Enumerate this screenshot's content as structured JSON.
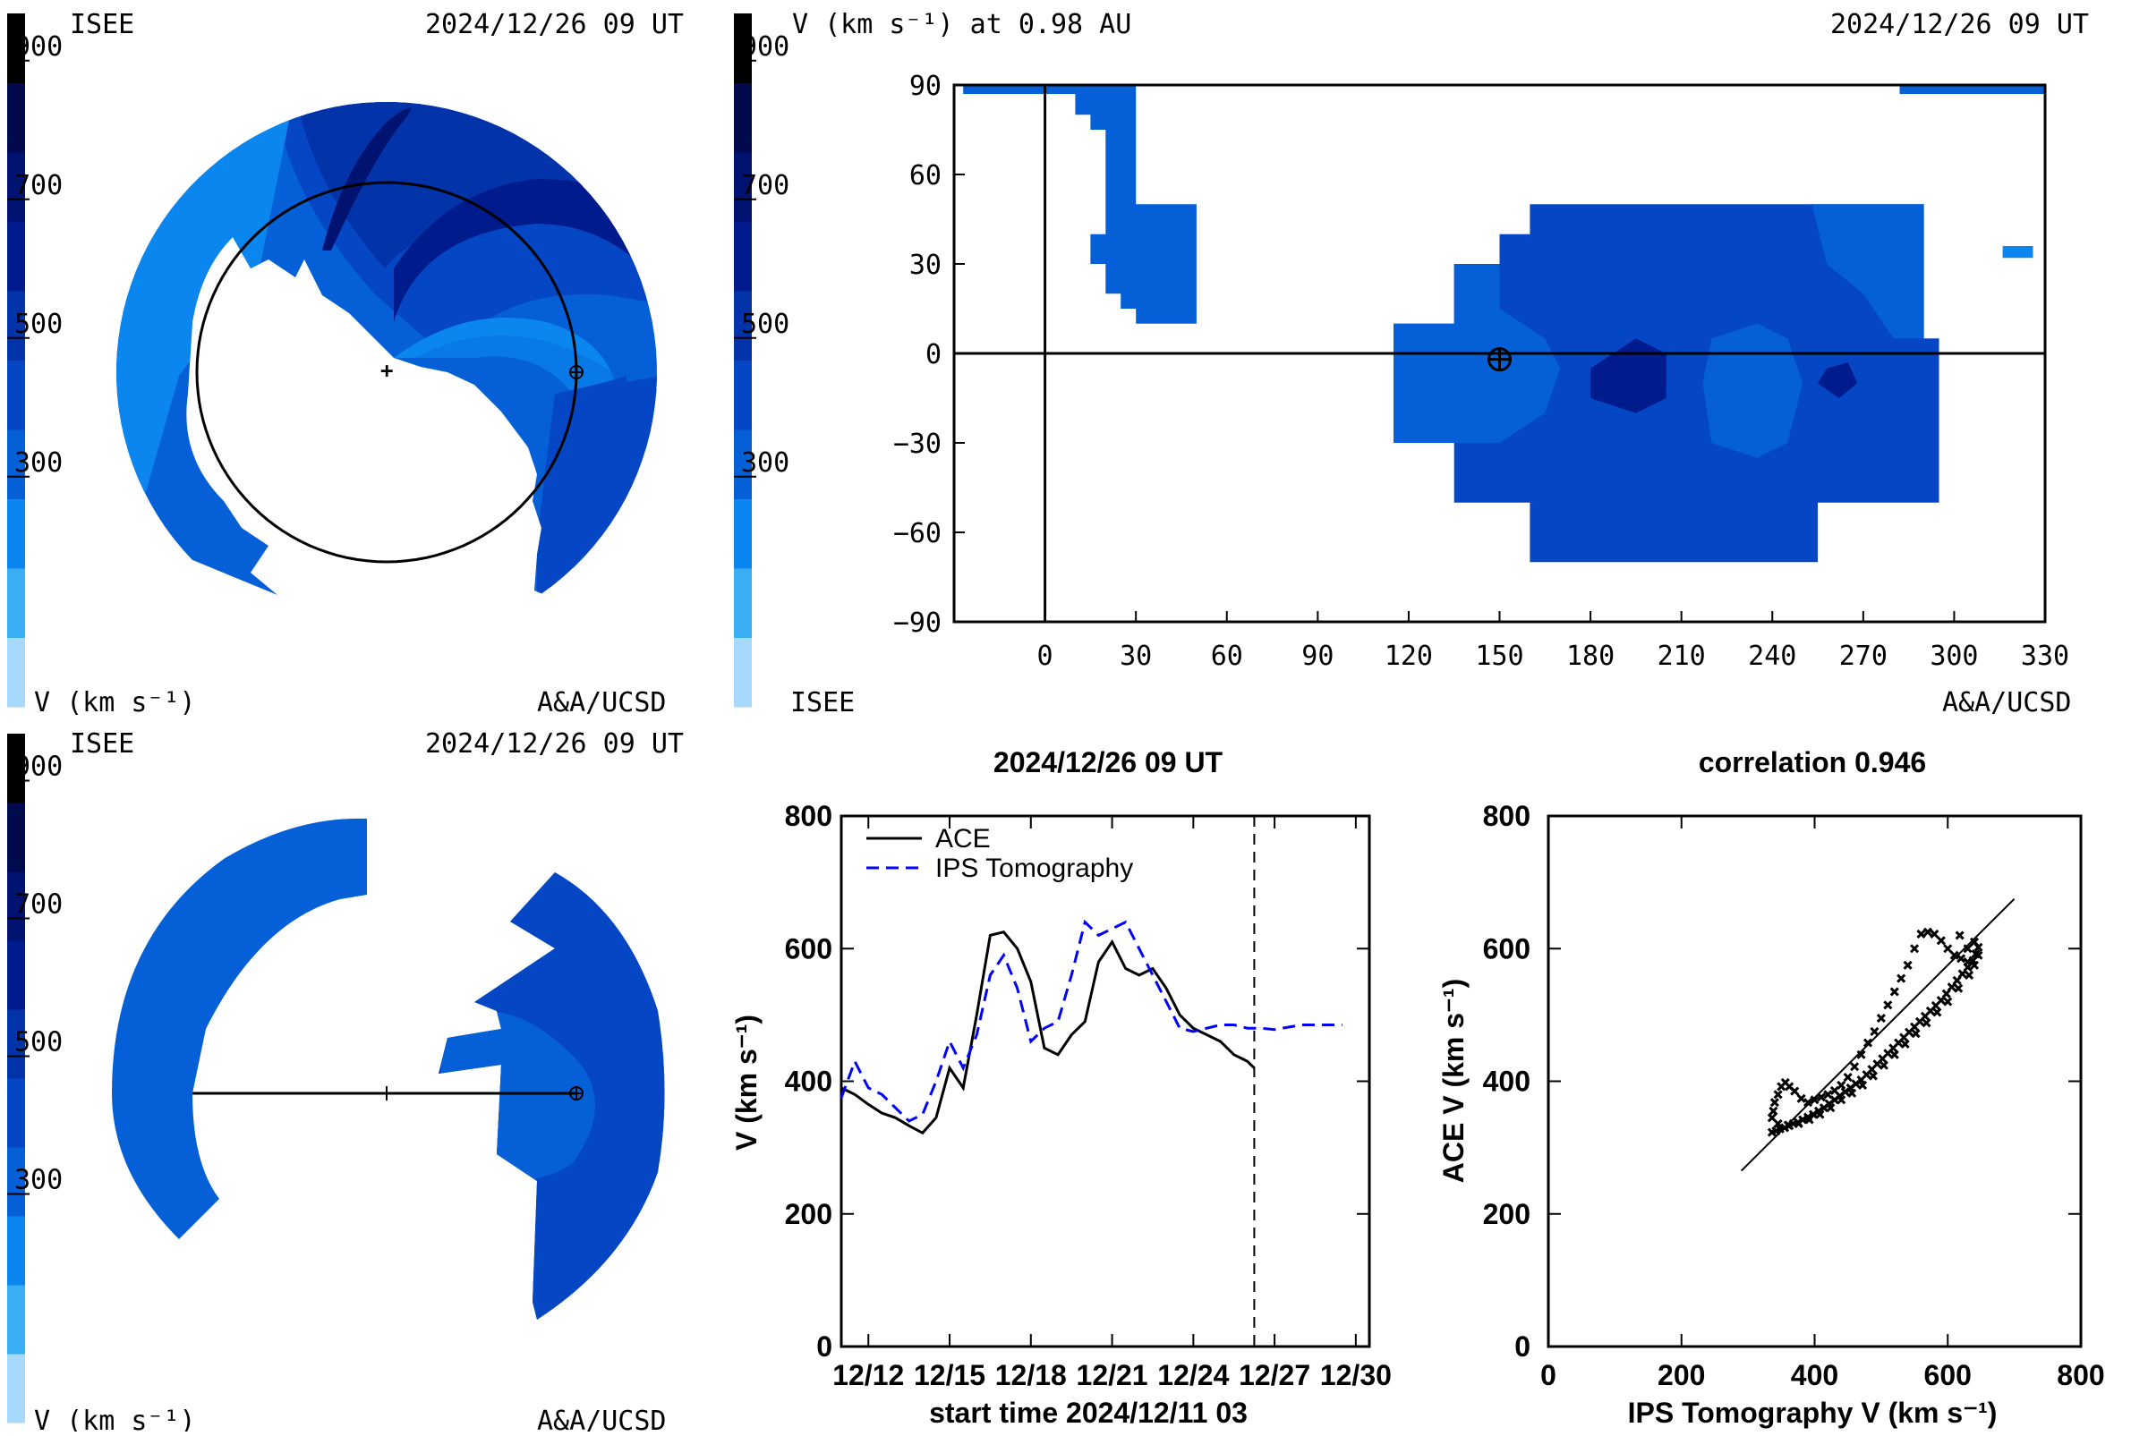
{
  "colorbar": {
    "ticks": [
      "900",
      "700",
      "500",
      "300"
    ],
    "colors": [
      "#a6d9fb",
      "#3aaef5",
      "#0a86ee",
      "#0560d8",
      "#0446c4",
      "#0333a8",
      "#001b8c",
      "#001371",
      "#000a4d",
      "#000000"
    ]
  },
  "panels": {
    "top_left": {
      "org": "ISEE",
      "datetime": "2024/12/26 09 UT",
      "units": "V (km s⁻¹)",
      "credit": "A&A/UCSD"
    },
    "top_right": {
      "title": "V (km s⁻¹) at 0.98 AU",
      "datetime": "2024/12/26 09 UT",
      "org": "ISEE",
      "credit": "A&A/UCSD"
    },
    "bottom_left": {
      "org": "ISEE",
      "datetime": "2024/12/26 09 UT",
      "units": "V (km s⁻¹)",
      "credit": "A&A/UCSD"
    }
  },
  "colors": {
    "vlow": "#0a86ee",
    "vmed": "#0560d8",
    "vhigh": "#0446c4",
    "vhigher": "#0333a8",
    "vtop": "#001b8c",
    "tomo": "#0000ff",
    "ace": "#000000"
  },
  "chart_data": [
    {
      "type": "heatmap",
      "title": "V (km s⁻¹) at 0.98 AU",
      "x_ticks": [
        "0",
        "30",
        "60",
        "90",
        "120",
        "150",
        "180",
        "210",
        "240",
        "270",
        "300",
        "330"
      ],
      "y_ticks": [
        "90",
        "60",
        "30",
        "0",
        "−30",
        "−60",
        "−90"
      ],
      "xlim": [
        -30,
        330
      ],
      "ylim": [
        -90,
        90
      ],
      "earth_marker": [
        150,
        -2
      ],
      "colorbar_range": [
        200,
        1000
      ]
    },
    {
      "type": "line",
      "title": "2024/12/26 09 UT",
      "xlabel": "start time 2024/12/11 03",
      "ylabel": "V (km s⁻¹)",
      "x_ticks": [
        "12/12",
        "12/15",
        "12/18",
        "12/21",
        "12/24",
        "12/27",
        "12/30"
      ],
      "y_ticks": [
        "0",
        "200",
        "400",
        "600",
        "800"
      ],
      "xlim": [
        0,
        19.5
      ],
      "ylim": [
        0,
        800
      ],
      "current_time_day": 15.25,
      "series": [
        {
          "name": "ACE",
          "x": [
            0,
            0.5,
            1,
            1.5,
            2,
            2.5,
            3,
            3.5,
            4,
            4.5,
            5,
            5.5,
            6,
            6.5,
            7,
            7.5,
            8,
            8.5,
            9,
            9.5,
            10,
            10.5,
            11,
            11.5,
            12,
            12.5,
            13,
            13.5,
            14,
            14.5,
            15,
            15.25
          ],
          "y": [
            390,
            380,
            365,
            352,
            345,
            333,
            322,
            345,
            420,
            390,
            500,
            620,
            625,
            600,
            550,
            450,
            440,
            470,
            490,
            580,
            610,
            570,
            560,
            570,
            540,
            500,
            480,
            470,
            460,
            440,
            430,
            420
          ]
        },
        {
          "name": "IPS Tomography",
          "x": [
            0,
            0.5,
            1,
            1.5,
            2,
            2.5,
            3,
            3.5,
            4,
            4.5,
            5,
            5.5,
            6,
            6.5,
            7,
            7.5,
            8,
            8.5,
            9,
            9.5,
            10,
            10.5,
            11,
            11.5,
            12,
            12.5,
            13,
            13.5,
            14,
            14.5,
            15,
            15.5,
            16,
            17,
            18,
            18.5
          ],
          "y": [
            375,
            430,
            390,
            380,
            360,
            340,
            350,
            400,
            460,
            420,
            470,
            560,
            590,
            540,
            460,
            480,
            490,
            560,
            640,
            620,
            630,
            640,
            600,
            560,
            520,
            480,
            475,
            480,
            485,
            485,
            480,
            480,
            478,
            485,
            485,
            485
          ]
        }
      ]
    },
    {
      "type": "scatter",
      "title": "correlation 0.946",
      "xlabel": "IPS Tomography V (km s⁻¹)",
      "ylabel": "ACE V (km s⁻¹)",
      "x_ticks": [
        "0",
        "200",
        "400",
        "600",
        "800"
      ],
      "y_ticks": [
        "0",
        "200",
        "400",
        "600",
        "800"
      ],
      "xlim": [
        0,
        800
      ],
      "ylim": [
        0,
        800
      ],
      "fit_line": [
        [
          290,
          265
        ],
        [
          700,
          675
        ]
      ],
      "points": [
        [
          336,
          323
        ],
        [
          342,
          325
        ],
        [
          348,
          328
        ],
        [
          355,
          330
        ],
        [
          362,
          333
        ],
        [
          368,
          336
        ],
        [
          375,
          338
        ],
        [
          382,
          342
        ],
        [
          390,
          346
        ],
        [
          398,
          350
        ],
        [
          406,
          355
        ],
        [
          414,
          360
        ],
        [
          422,
          366
        ],
        [
          430,
          372
        ],
        [
          438,
          378
        ],
        [
          446,
          384
        ],
        [
          454,
          390
        ],
        [
          462,
          396
        ],
        [
          470,
          402
        ],
        [
          478,
          410
        ],
        [
          486,
          418
        ],
        [
          494,
          426
        ],
        [
          502,
          434
        ],
        [
          510,
          442
        ],
        [
          518,
          450
        ],
        [
          526,
          458
        ],
        [
          534,
          466
        ],
        [
          542,
          474
        ],
        [
          550,
          482
        ],
        [
          558,
          490
        ],
        [
          566,
          498
        ],
        [
          574,
          506
        ],
        [
          582,
          514
        ],
        [
          590,
          522
        ],
        [
          598,
          532
        ],
        [
          606,
          542
        ],
        [
          614,
          552
        ],
        [
          622,
          562
        ],
        [
          630,
          572
        ],
        [
          638,
          582
        ],
        [
          642,
          592
        ],
        [
          646,
          602
        ],
        [
          630,
          580
        ],
        [
          620,
          585
        ],
        [
          610,
          590
        ],
        [
          600,
          600
        ],
        [
          590,
          612
        ],
        [
          580,
          622
        ],
        [
          570,
          625
        ],
        [
          560,
          622
        ],
        [
          550,
          600
        ],
        [
          540,
          575
        ],
        [
          530,
          555
        ],
        [
          520,
          535
        ],
        [
          510,
          515
        ],
        [
          500,
          495
        ],
        [
          490,
          475
        ],
        [
          480,
          458
        ],
        [
          470,
          440
        ],
        [
          460,
          422
        ],
        [
          450,
          406
        ],
        [
          440,
          394
        ],
        [
          430,
          386
        ],
        [
          420,
          380
        ],
        [
          410,
          376
        ],
        [
          400,
          372
        ],
        [
          390,
          368
        ],
        [
          380,
          374
        ],
        [
          370,
          385
        ],
        [
          362,
          392
        ],
        [
          356,
          398
        ],
        [
          350,
          392
        ],
        [
          345,
          380
        ],
        [
          340,
          368
        ],
        [
          338,
          355
        ],
        [
          336,
          345
        ],
        [
          345,
          336
        ],
        [
          360,
          334
        ],
        [
          376,
          336
        ],
        [
          392,
          342
        ],
        [
          408,
          350
        ],
        [
          424,
          360
        ],
        [
          440,
          372
        ],
        [
          456,
          382
        ],
        [
          472,
          394
        ],
        [
          488,
          408
        ],
        [
          504,
          424
        ],
        [
          520,
          440
        ],
        [
          536,
          456
        ],
        [
          552,
          472
        ],
        [
          568,
          488
        ],
        [
          584,
          504
        ],
        [
          600,
          520
        ],
        [
          616,
          540
        ],
        [
          632,
          560
        ],
        [
          640,
          575
        ],
        [
          646,
          590
        ],
        [
          640,
          610
        ],
        [
          630,
          600
        ],
        [
          618,
          620
        ]
      ]
    }
  ]
}
